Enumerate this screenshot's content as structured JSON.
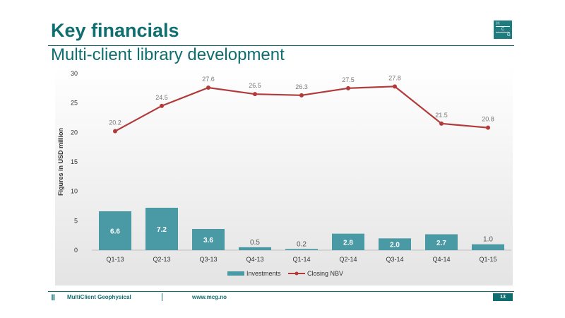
{
  "slide": {
    "title": "Key financials",
    "subtitle": "Multi-client library development",
    "logo_letters": [
      "H",
      "C",
      "G"
    ]
  },
  "footer": {
    "company": "MultiClient Geophysical",
    "url": "www.mcg.no",
    "page_number": "13",
    "bars_glyph": "||||"
  },
  "colors": {
    "brand": "#0f6e70",
    "bar": "#4a9aa6",
    "line": "#b13a3a"
  },
  "chart_data": {
    "type": "bar",
    "categories": [
      "Q1-13",
      "Q2-13",
      "Q3-13",
      "Q4-13",
      "Q1-14",
      "Q2-14",
      "Q3-14",
      "Q4-14",
      "Q1-15"
    ],
    "series": [
      {
        "name": "Investments",
        "type": "bar",
        "values": [
          6.6,
          7.2,
          3.6,
          0.5,
          0.2,
          2.8,
          2.0,
          2.7,
          1.0
        ],
        "labels": [
          "6.6",
          "7.2",
          "3.6",
          "0.5",
          "0.2",
          "2.8",
          "2.0",
          "2.7",
          "1.0"
        ]
      },
      {
        "name": "Closing NBV",
        "type": "line",
        "values": [
          20.2,
          24.5,
          27.6,
          26.5,
          26.3,
          27.5,
          27.8,
          21.5,
          20.8
        ],
        "labels": [
          "20.2",
          "24.5",
          "27.6",
          "26.5",
          "26.3",
          "27.5",
          "27.8",
          "21.5",
          "20.8"
        ]
      }
    ],
    "ylabel": "Figures in USD million",
    "ylim": [
      0,
      30
    ],
    "yticks": [
      "0",
      "5",
      "10",
      "15",
      "20",
      "25",
      "30"
    ],
    "grid": false,
    "legend_position": "bottom"
  }
}
